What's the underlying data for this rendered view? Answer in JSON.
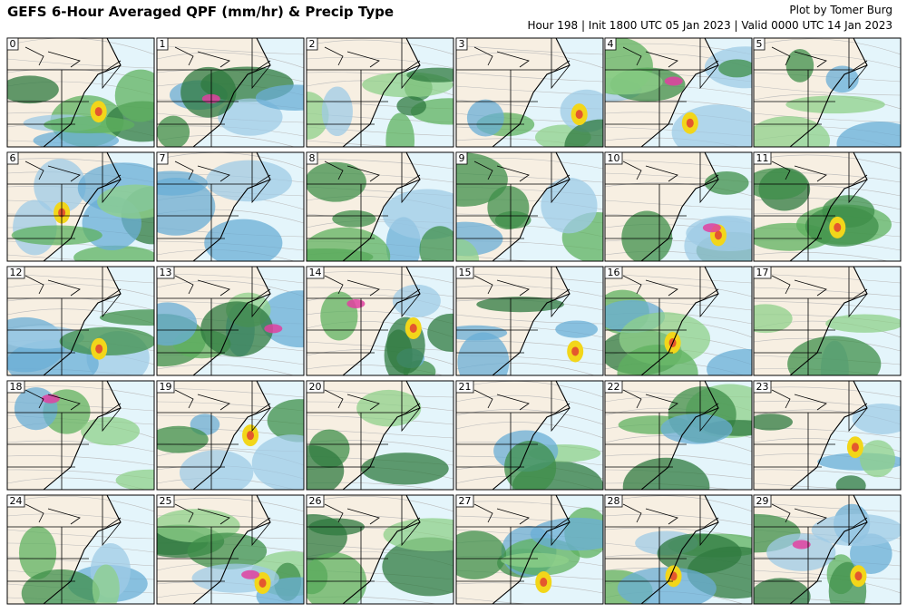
{
  "header": {
    "title": "GEFS 6-Hour Averaged QPF (mm/hr) & Precip Type",
    "credit": "Plot by Tomer Burg",
    "info": "Hour 198 | Init 1800 UTC 05 Jan 2023 | Valid 0000 UTC 14 Jan 2023"
  },
  "panels": [
    {
      "label": "0"
    },
    {
      "label": "1"
    },
    {
      "label": "2"
    },
    {
      "label": "3"
    },
    {
      "label": "4"
    },
    {
      "label": "5"
    },
    {
      "label": "6"
    },
    {
      "label": "7"
    },
    {
      "label": "8"
    },
    {
      "label": "9"
    },
    {
      "label": "10"
    },
    {
      "label": "11"
    },
    {
      "label": "12"
    },
    {
      "label": "13"
    },
    {
      "label": "14"
    },
    {
      "label": "15"
    },
    {
      "label": "16"
    },
    {
      "label": "17"
    },
    {
      "label": "18"
    },
    {
      "label": "19"
    },
    {
      "label": "20"
    },
    {
      "label": "21"
    },
    {
      "label": "22"
    },
    {
      "label": "23"
    },
    {
      "label": "24"
    },
    {
      "label": "25"
    },
    {
      "label": "26"
    },
    {
      "label": "27"
    },
    {
      "label": "28"
    },
    {
      "label": "29"
    }
  ]
}
